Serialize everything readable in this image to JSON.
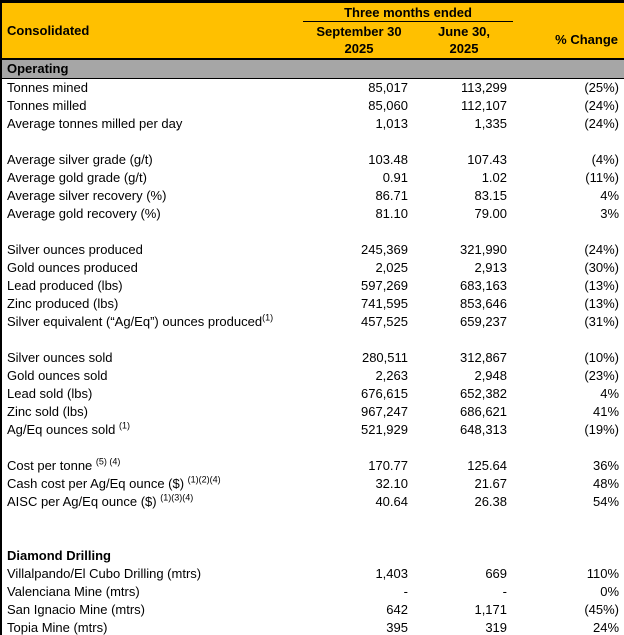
{
  "header": {
    "corner_label": "Consolidated",
    "period_label": "Three months ended",
    "columns": [
      {
        "line1": "September 30",
        "line2": "2025"
      },
      {
        "line1": "June 30,",
        "line2": "2025"
      }
    ],
    "change_label": "% Change"
  },
  "colors": {
    "header_bg": "#FFC000",
    "section_bg": "#A6A6A6",
    "border": "#000000"
  },
  "rows": [
    {
      "type": "section",
      "label": "Operating"
    },
    {
      "type": "data",
      "label": "Tonnes mined",
      "sep": "85,017",
      "june": "113,299",
      "change": "(25%)"
    },
    {
      "type": "data",
      "label": "Tonnes milled",
      "sep": "85,060",
      "june": "112,107",
      "change": "(24%)"
    },
    {
      "type": "data",
      "label": "Average tonnes milled per day",
      "sep": "1,013",
      "june": "1,335",
      "change": "(24%)"
    },
    {
      "type": "blank"
    },
    {
      "type": "data",
      "label": "Average silver grade (g/t)",
      "sep": "103.48",
      "june": "107.43",
      "change": "(4%)"
    },
    {
      "type": "data",
      "label": "Average gold grade (g/t)",
      "sep": "0.91",
      "june": "1.02",
      "change": "(11%)"
    },
    {
      "type": "data",
      "label": "Average silver recovery (%)",
      "sep": "86.71",
      "june": "83.15",
      "change": "4%"
    },
    {
      "type": "data",
      "label": "Average gold recovery (%)",
      "sep": "81.10",
      "june": "79.00",
      "change": "3%"
    },
    {
      "type": "blank"
    },
    {
      "type": "data",
      "label": "Silver ounces produced",
      "sep": "245,369",
      "june": "321,990",
      "change": "(24%)"
    },
    {
      "type": "data",
      "label": "Gold ounces produced",
      "sep": "2,025",
      "june": "2,913",
      "change": "(30%)"
    },
    {
      "type": "data",
      "label": "Lead produced (lbs)",
      "sep": "597,269",
      "june": "683,163",
      "change": "(13%)"
    },
    {
      "type": "data",
      "label": "Zinc produced (lbs)",
      "sep": "741,595",
      "june": "853,646",
      "change": "(13%)"
    },
    {
      "type": "data",
      "label": "Silver equivalent (“Ag/Eq”) ounces produced",
      "sup": "(1)",
      "sep": "457,525",
      "june": "659,237",
      "change": "(31%)"
    },
    {
      "type": "blank"
    },
    {
      "type": "data",
      "label": "Silver ounces sold",
      "sep": "280,511",
      "june": "312,867",
      "change": "(10%)"
    },
    {
      "type": "data",
      "label": "Gold ounces sold",
      "sep": "2,263",
      "june": "2,948",
      "change": "(23%)"
    },
    {
      "type": "data",
      "label": "Lead sold (lbs)",
      "sep": "676,615",
      "june": "652,382",
      "change": "4%"
    },
    {
      "type": "data",
      "label": "Zinc sold (lbs)",
      "sep": "967,247",
      "june": "686,621",
      "change": "41%"
    },
    {
      "type": "data",
      "label": "Ag/Eq ounces sold ",
      "sup": "(1)",
      "sep": "521,929",
      "june": "648,313",
      "change": "(19%)"
    },
    {
      "type": "blank"
    },
    {
      "type": "data",
      "label": "Cost per tonne ",
      "sup": "(5) (4)",
      "sep": "170.77",
      "june": "125.64",
      "change": "36%"
    },
    {
      "type": "data",
      "label": "Cash cost per Ag/Eq ounce ($) ",
      "sup": "(1)(2)(4)",
      "sep": "32.10",
      "june": "21.67",
      "change": "48%"
    },
    {
      "type": "data",
      "label": "AISC per Ag/Eq ounce ($) ",
      "sup": "(1)(3)(4)",
      "sep": "40.64",
      "june": "26.38",
      "change": "54%"
    },
    {
      "type": "blank"
    },
    {
      "type": "blank"
    },
    {
      "type": "heading",
      "label": "Diamond Drilling"
    },
    {
      "type": "data",
      "label": "Villalpando/El Cubo Drilling (mtrs)",
      "sep": "1,403",
      "june": "669",
      "change": "110%"
    },
    {
      "type": "data",
      "label": "Valenciana Mine (mtrs)",
      "sep": "-",
      "june": "-",
      "change": "0%"
    },
    {
      "type": "data",
      "label": "San Ignacio Mine (mtrs)",
      "sep": "642",
      "june": "1,171",
      "change": "(45%)"
    },
    {
      "type": "data",
      "label": "Topia Mine (mtrs)",
      "sep": "395",
      "june": "319",
      "change": "24%"
    }
  ]
}
